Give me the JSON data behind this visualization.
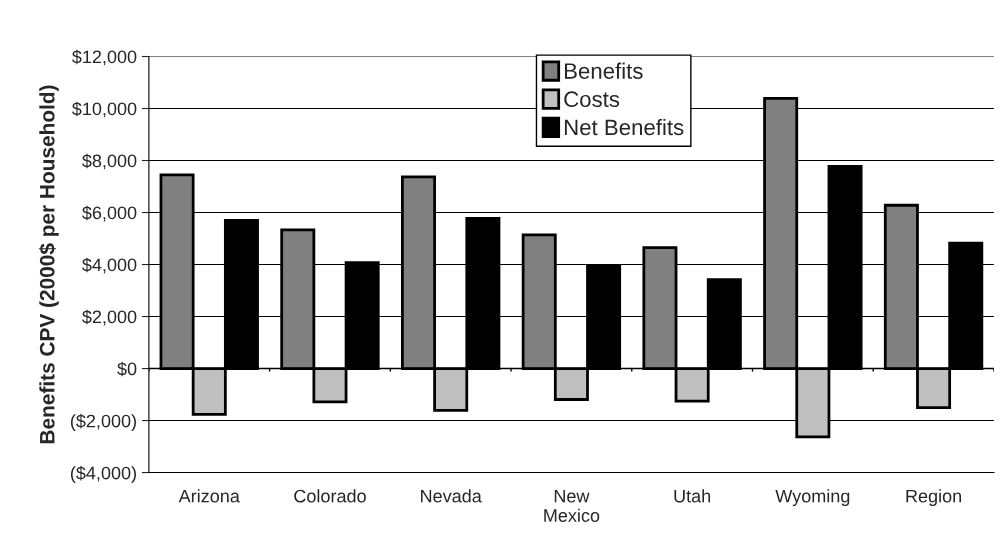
{
  "chart_data": {
    "type": "bar",
    "ylabel": "Benefits CPV (2000$ per Household)",
    "categories": [
      "Arizona",
      "Colorado",
      "Nevada",
      "New\nMexico",
      "Utah",
      "Wyoming",
      "Region"
    ],
    "series": [
      {
        "name": "Benefits",
        "color": "#808080",
        "values": [
          7450,
          5330,
          7370,
          5140,
          4650,
          10390,
          6280
        ]
      },
      {
        "name": "Costs",
        "color": "#c0c0c0",
        "values": [
          -1760,
          -1280,
          -1610,
          -1190,
          -1250,
          -2630,
          -1500
        ]
      },
      {
        "name": "Net Benefits",
        "color": "#000000",
        "values": [
          5700,
          4070,
          5770,
          3960,
          3420,
          7770,
          4820
        ]
      }
    ],
    "ylim": [
      -4000,
      12000
    ],
    "yticks": [
      {
        "value": -4000,
        "label": "($4,000)"
      },
      {
        "value": -2000,
        "label": "($2,000)"
      },
      {
        "value": 0,
        "label": "$0"
      },
      {
        "value": 2000,
        "label": "$2,000"
      },
      {
        "value": 4000,
        "label": "$4,000"
      },
      {
        "value": 6000,
        "label": "$6,000"
      },
      {
        "value": 8000,
        "label": "$8,000"
      },
      {
        "value": 10000,
        "label": "$10,000"
      },
      {
        "value": 12000,
        "label": "$12,000"
      }
    ],
    "grid": "y",
    "legend": "top"
  }
}
